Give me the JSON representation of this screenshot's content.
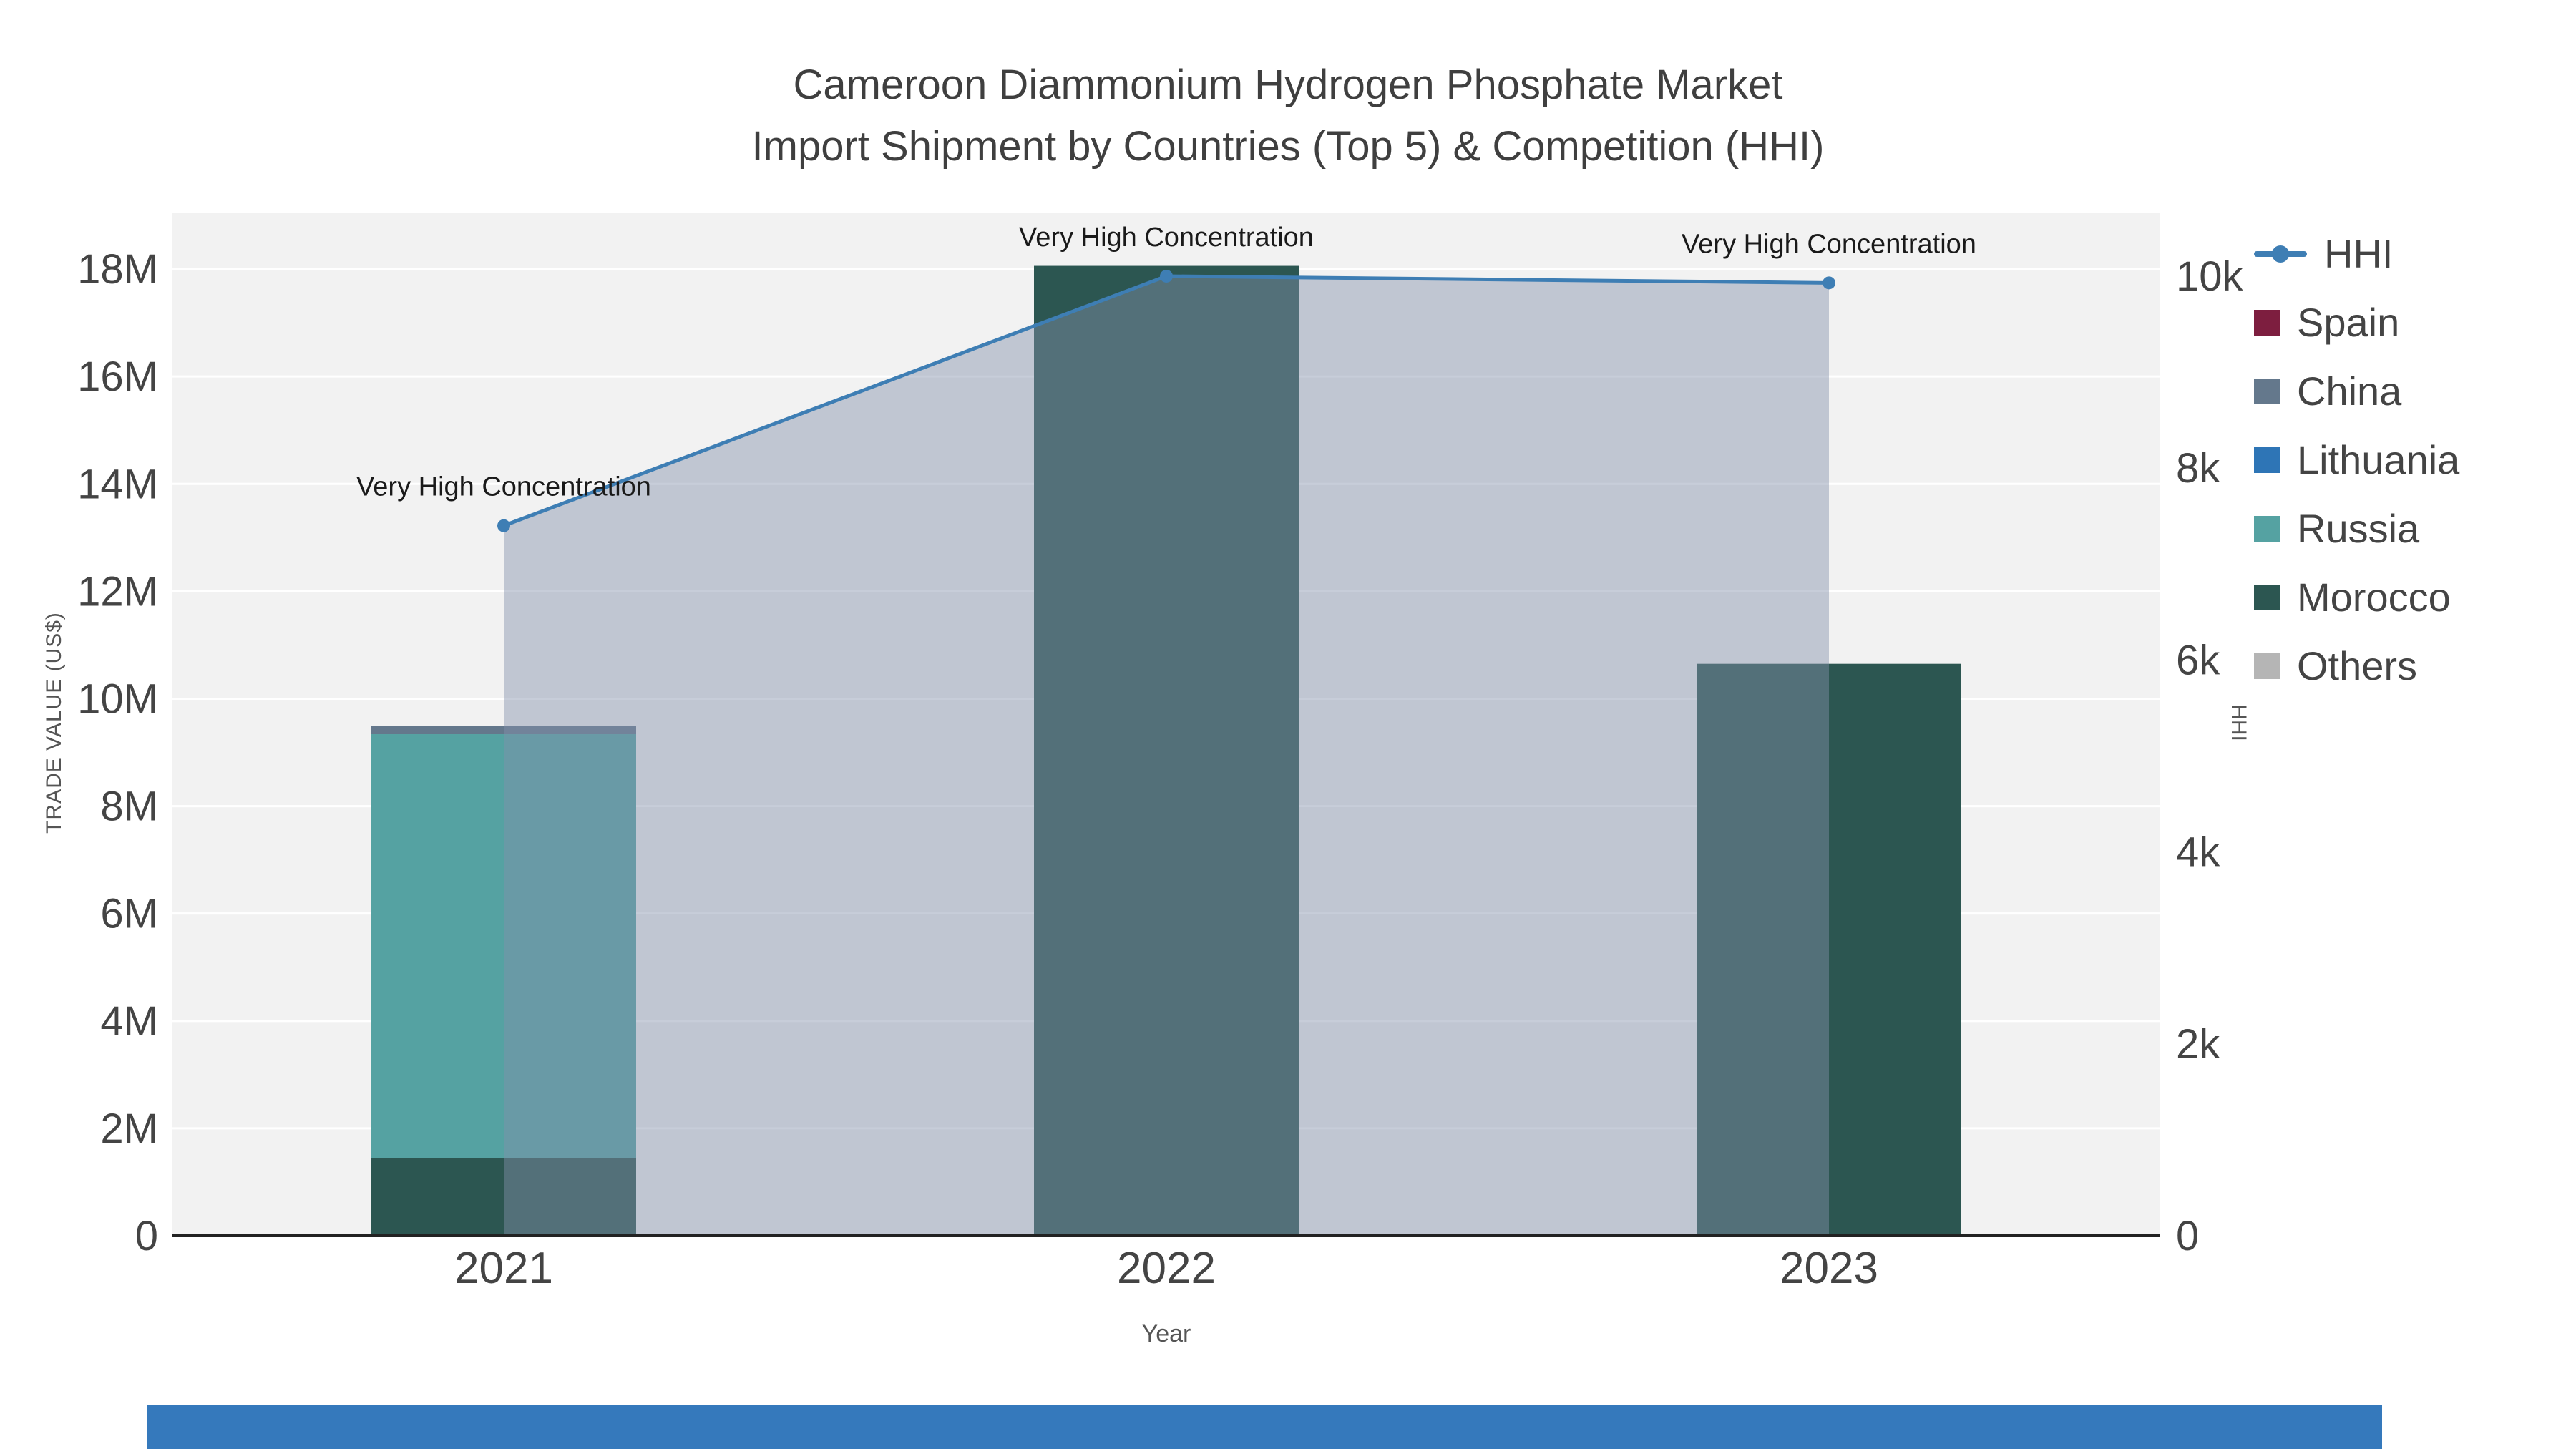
{
  "colors": {
    "plot_bg": "#f2f2f2",
    "grid": "#ffffff",
    "axis_line": "#222222",
    "text": "#444444",
    "annotation_text": "#1a1a1a",
    "footer_bar": "#3579bc"
  },
  "chart_data": {
    "type": "bar",
    "subtype": "stacked-bar-with-line-dual-axis",
    "title": "Cameroon Diammonium Hydrogen Phosphate Market",
    "subtitle": "Import Shipment by Countries (Top 5) & Competition (HHI)",
    "xlabel": "Year",
    "ylabel_left": "TRADE VALUE (US$)",
    "ylabel_right": "HHI",
    "categories": [
      "2021",
      "2022",
      "2023"
    ],
    "bar_series": [
      {
        "name": "Morocco",
        "color": "#2c5651",
        "values": [
          1440000,
          18060000,
          10650000
        ]
      },
      {
        "name": "Russia",
        "color": "#55a2a2",
        "values": [
          7900000,
          0,
          0
        ]
      },
      {
        "name": "China",
        "color": "#64788c",
        "values": [
          150000,
          0,
          0
        ]
      }
    ],
    "line_series": {
      "name": "HHI",
      "axis": "right",
      "color": "#3e7eb4",
      "fill_color": "rgba(130,145,170,0.45)",
      "values": [
        7400,
        10000,
        9930
      ]
    },
    "annotations": [
      "Very High Concentration",
      "Very High Concentration",
      "Very High Concentration"
    ],
    "left_axis": {
      "range": [
        0,
        19040000
      ],
      "ticks": [
        0,
        2000000,
        4000000,
        6000000,
        8000000,
        10000000,
        12000000,
        14000000,
        16000000,
        18000000
      ],
      "tick_labels": [
        "0",
        "2M",
        "4M",
        "6M",
        "8M",
        "10M",
        "12M",
        "14M",
        "16M",
        "18M"
      ]
    },
    "right_axis": {
      "range": [
        0,
        10656
      ],
      "ticks": [
        0,
        2000,
        4000,
        6000,
        8000,
        10000
      ],
      "tick_labels": [
        "0",
        "2k",
        "4k",
        "6k",
        "8k",
        "10k"
      ]
    },
    "legend_position": "right"
  },
  "legend": [
    {
      "label": "HHI",
      "color": "#3e7eb4",
      "marker": "line"
    },
    {
      "label": "Spain",
      "color": "#7d1e3f",
      "marker": "square"
    },
    {
      "label": "China",
      "color": "#64788c",
      "marker": "square"
    },
    {
      "label": "Lithuania",
      "color": "#2e75b6",
      "marker": "square"
    },
    {
      "label": "Russia",
      "color": "#55a2a2",
      "marker": "square"
    },
    {
      "label": "Morocco",
      "color": "#2c5651",
      "marker": "square"
    },
    {
      "label": "Others",
      "color": "#b5b5b5",
      "marker": "square"
    }
  ]
}
